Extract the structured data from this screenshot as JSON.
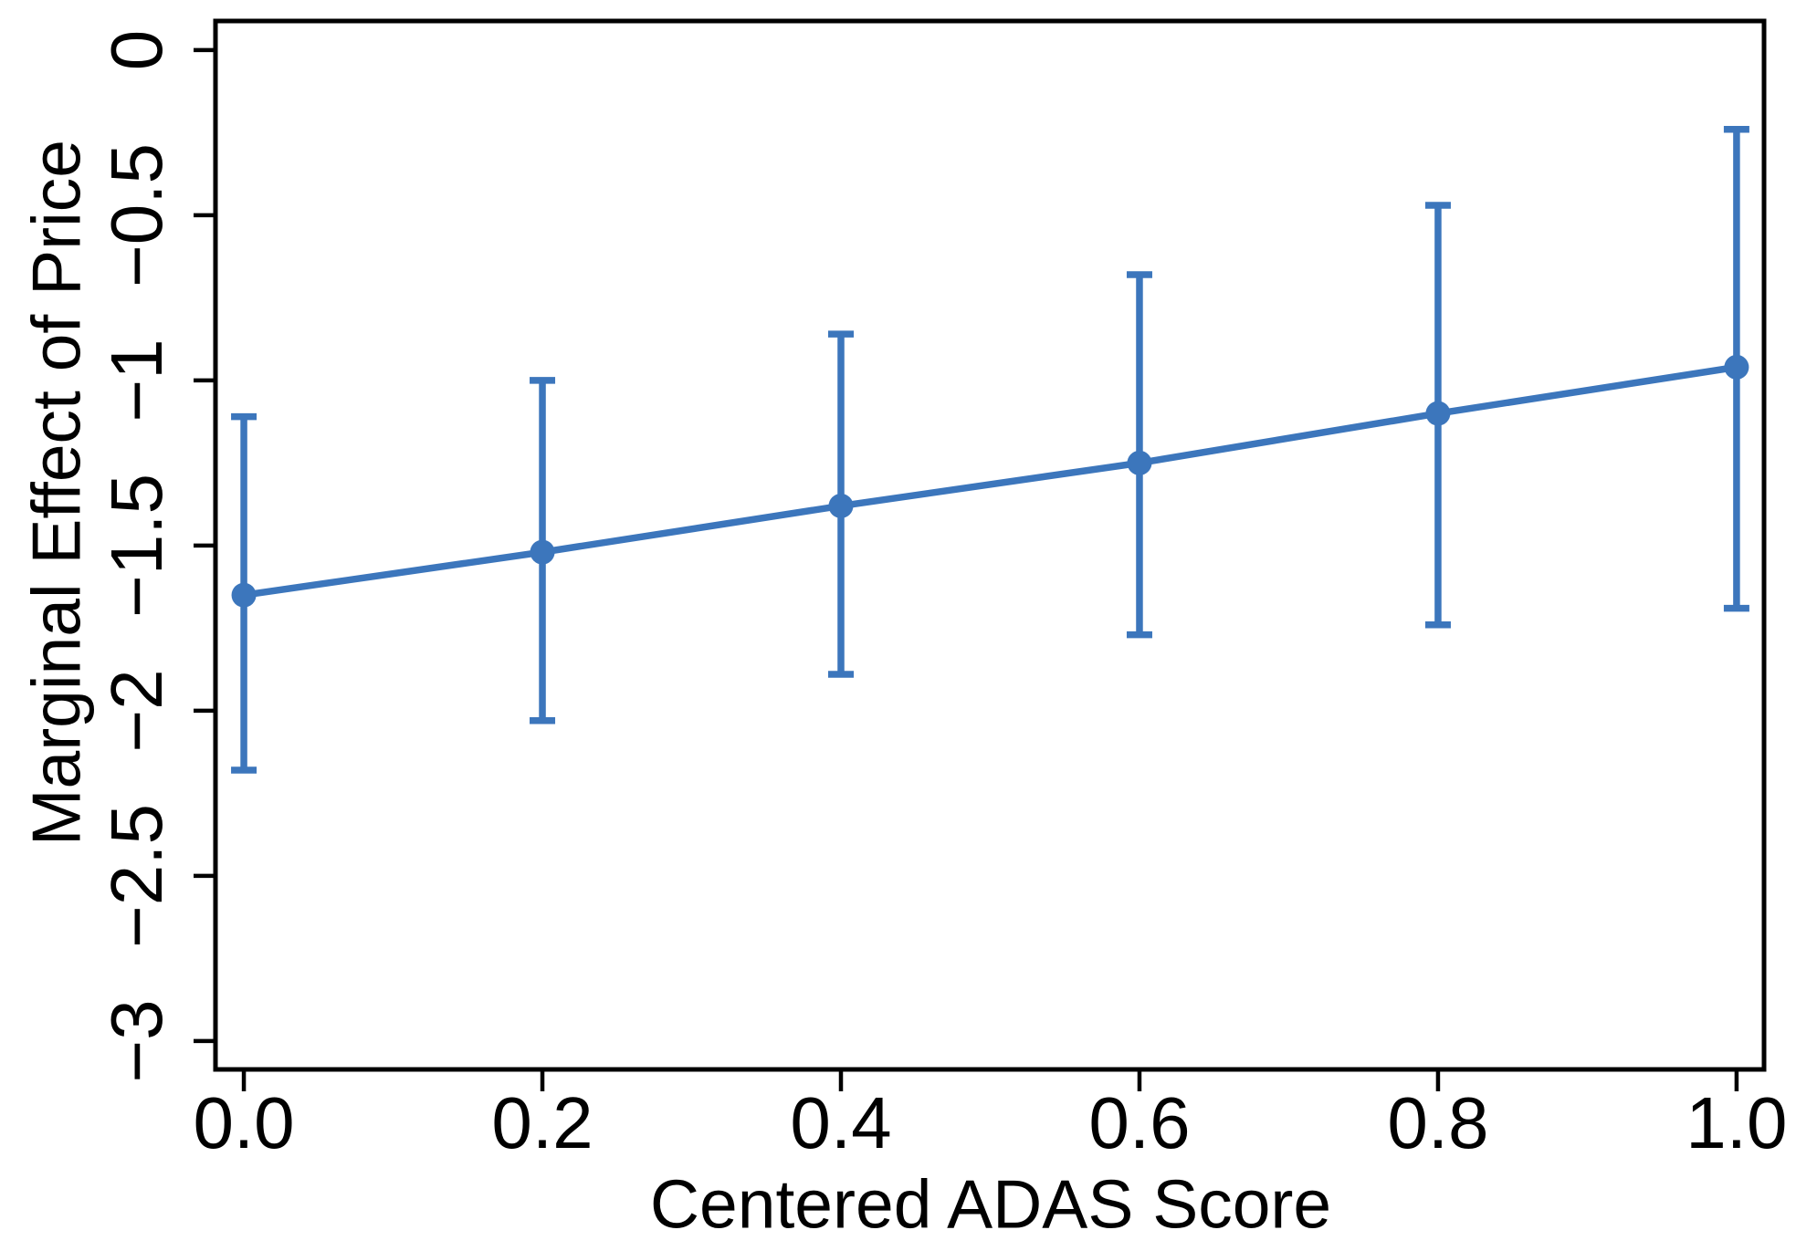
{
  "figure": {
    "background_color": "#ffffff",
    "frame_color": "#000000",
    "text_color": "#000000",
    "accent_color": "#3c76bc"
  },
  "chart_data": {
    "type": "line",
    "title": "",
    "xlabel": "Centered ADAS Score",
    "ylabel": "Marginal Effect of Price",
    "x": [
      0.0,
      0.2,
      0.4,
      0.6,
      0.8,
      1.0
    ],
    "series": [
      {
        "name": "marginal-effect-of-price",
        "values": [
          -1.65,
          -1.52,
          -1.38,
          -1.25,
          -1.1,
          -0.96
        ],
        "ci_upper": [
          -1.11,
          -1.0,
          -0.86,
          -0.68,
          -0.47,
          -0.24
        ],
        "ci_lower": [
          -2.18,
          -2.03,
          -1.89,
          -1.77,
          -1.74,
          -1.69
        ]
      }
    ],
    "xticks": {
      "values": [
        0.0,
        0.2,
        0.4,
        0.6,
        0.8,
        1.0
      ],
      "labels": [
        "0.0",
        "0.2",
        "0.4",
        "0.6",
        "0.8",
        "1.0"
      ]
    },
    "yticks": {
      "values": [
        0,
        -0.5,
        -1,
        -1.5,
        -2,
        -2.5,
        -3
      ],
      "labels": [
        "0",
        "−0.5",
        "−1",
        "−1.5",
        "−2",
        "−2.5",
        "−3"
      ]
    },
    "xlim": [
      -0.019,
      1.0184
    ],
    "ylim": [
      -3.086,
      0.088
    ],
    "grid": false,
    "legend": "none",
    "marker": "circle",
    "error_bars": true
  }
}
